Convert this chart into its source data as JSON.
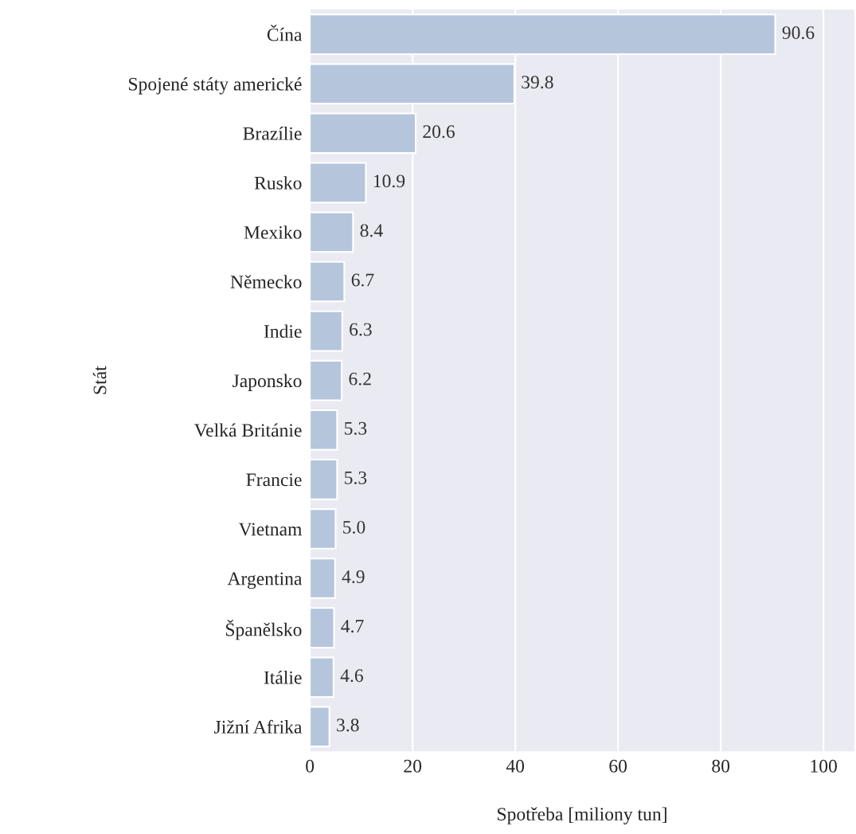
{
  "chart_data": {
    "type": "bar",
    "orientation": "horizontal",
    "xlabel": "Spotřeba [miliony tun]",
    "ylabel": "Stát",
    "categories": [
      "Čína",
      "Spojené státy americké",
      "Brazílie",
      "Rusko",
      "Mexiko",
      "Německo",
      "Indie",
      "Japonsko",
      "Velká Británie",
      "Francie",
      "Vietnam",
      "Argentina",
      "Španělsko",
      "Itálie",
      "Jižní Afrika"
    ],
    "values": [
      90.6,
      39.8,
      20.6,
      10.9,
      8.4,
      6.7,
      6.3,
      6.2,
      5.3,
      5.3,
      5.0,
      4.9,
      4.7,
      4.6,
      3.8
    ],
    "value_labels": [
      "90.6",
      "39.8",
      "20.6",
      "10.9",
      "8.4",
      "6.7",
      "6.3",
      "6.2",
      "5.3",
      "5.3",
      "5.0",
      "4.9",
      "4.7",
      "4.6",
      "3.8"
    ],
    "color": "#b5c5dc",
    "xlim": [
      0,
      106
    ],
    "xticks": [
      0,
      20,
      40,
      60,
      80,
      100
    ],
    "grid": "x"
  }
}
